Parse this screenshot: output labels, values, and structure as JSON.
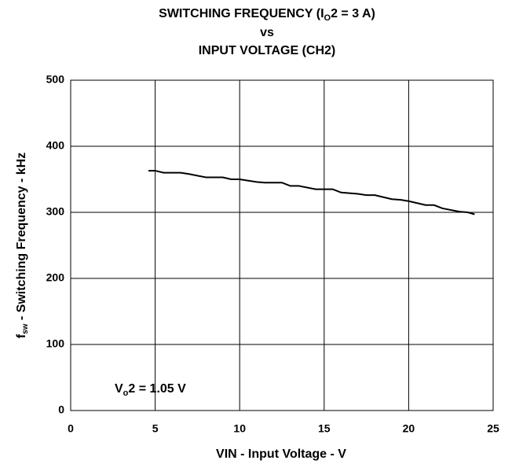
{
  "chart_data": {
    "type": "line",
    "title": [
      [
        "SWITCHING FREQUENCY (I",
        "O",
        "2 = 3 A)"
      ],
      [
        "vs"
      ],
      [
        "INPUT VOLTAGE (CH2)"
      ]
    ],
    "xlabel": "VIN - Input Voltage - V",
    "ylabel": [
      "f",
      "sw",
      " - Switching Frequency - kHz"
    ],
    "annotation": [
      "V",
      "o",
      "2 = 1.05 V"
    ],
    "xlim": [
      0,
      25
    ],
    "xticks": [
      0,
      5,
      10,
      15,
      20,
      25
    ],
    "ylim": [
      0,
      500
    ],
    "yticks": [
      0,
      100,
      200,
      300,
      400,
      500
    ],
    "grid": true,
    "series": [
      {
        "color": "#000000",
        "x": [
          4.6,
          5,
          5.5,
          6.5,
          7,
          8,
          9,
          9.5,
          10,
          11,
          11.5,
          12.5,
          13,
          13.5,
          14.5,
          15.5,
          16,
          17,
          17.5,
          18,
          19,
          19.5,
          20,
          21,
          21.5,
          22,
          23,
          23.5,
          23.9
        ],
        "values": [
          363,
          363,
          360,
          360,
          358,
          353,
          353,
          350,
          350,
          346,
          345,
          345,
          340,
          340,
          335,
          335,
          330,
          328,
          326,
          326,
          320,
          319,
          317,
          311,
          311,
          306,
          301,
          300,
          297
        ]
      }
    ]
  }
}
